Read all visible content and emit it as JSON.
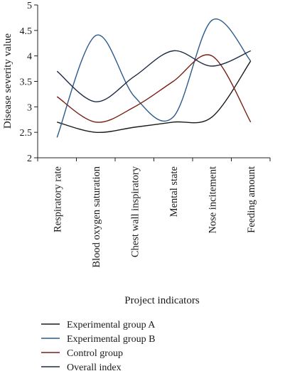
{
  "chart_data": {
    "type": "line",
    "title": "",
    "xlabel": "Project indicators",
    "ylabel": "Disease severity value",
    "ylim": [
      2,
      5
    ],
    "yticks": [
      "2",
      "2.5",
      "3",
      "3.5",
      "4",
      "4.5",
      "5"
    ],
    "categories": [
      "Respiratory rate",
      "Blood oxygen saturation",
      "Chest wall inspiratory",
      "Mental state",
      "Nose incitement",
      "Feeding amount"
    ],
    "grid": false,
    "legend_position": "bottom",
    "series": [
      {
        "name": "Experimental group A",
        "color": "#1a1a1a",
        "values": [
          2.7,
          2.5,
          2.6,
          2.7,
          2.8,
          3.9
        ]
      },
      {
        "name": "Experimental group B",
        "color": "#2b5a8c",
        "values": [
          2.4,
          4.4,
          3.2,
          2.8,
          4.7,
          3.9
        ]
      },
      {
        "name": "Control group",
        "color": "#7a1f14",
        "values": [
          3.2,
          2.7,
          3.0,
          3.5,
          4.0,
          2.7
        ]
      },
      {
        "name": "Overall index",
        "color": "#1f2a44",
        "values": [
          3.7,
          3.1,
          3.6,
          4.1,
          3.8,
          4.1
        ]
      }
    ]
  }
}
